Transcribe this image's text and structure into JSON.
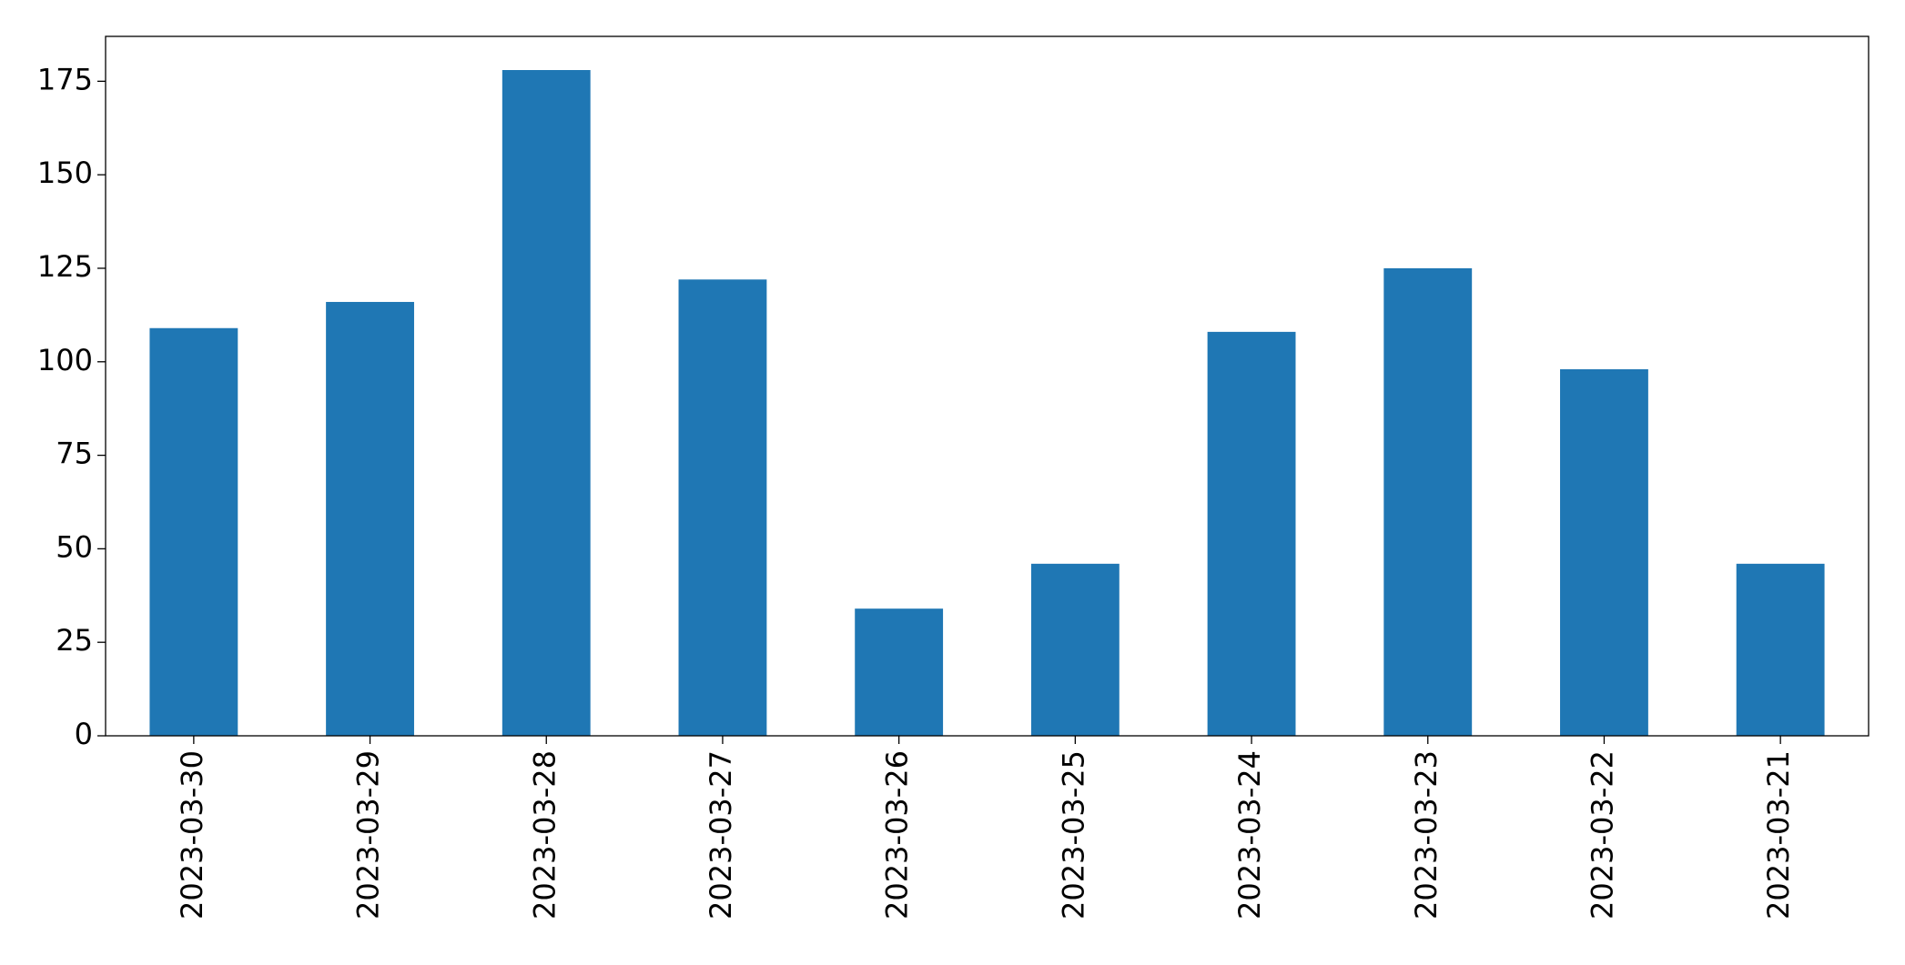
{
  "chart_data": {
    "type": "bar",
    "categories": [
      "2023-03-30",
      "2023-03-29",
      "2023-03-28",
      "2023-03-27",
      "2023-03-26",
      "2023-03-25",
      "2023-03-24",
      "2023-03-23",
      "2023-03-22",
      "2023-03-21"
    ],
    "values": [
      109,
      116,
      178,
      122,
      34,
      46,
      108,
      125,
      98,
      46
    ],
    "color": "#1f77b4",
    "ylim": [
      0,
      187
    ],
    "yticks": [
      0,
      25,
      50,
      75,
      100,
      125,
      150,
      175
    ],
    "grid": false
  }
}
